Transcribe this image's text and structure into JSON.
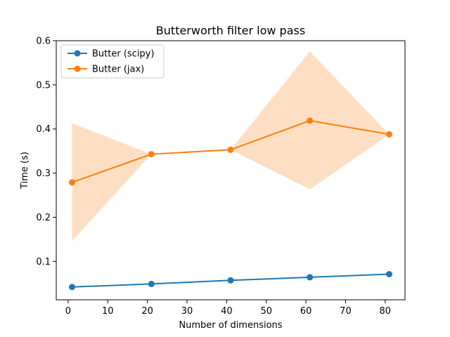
{
  "chart_data": {
    "type": "line",
    "title": "Butterworth filter low pass",
    "xlabel": "Number of dimensions",
    "ylabel": "Time (s)",
    "x": [
      1,
      21,
      41,
      61,
      81
    ],
    "xlim": [
      -3,
      85
    ],
    "ylim": [
      0.013,
      0.6
    ],
    "xticks": [
      0,
      10,
      20,
      30,
      40,
      50,
      60,
      70,
      80
    ],
    "xtick_labels": [
      "0",
      "10",
      "20",
      "30",
      "40",
      "50",
      "60",
      "70",
      "80"
    ],
    "yticks": [
      0.1,
      0.2,
      0.3,
      0.4,
      0.5,
      0.6
    ],
    "ytick_labels": [
      "0.1",
      "0.2",
      "0.3",
      "0.4",
      "0.5",
      "0.6"
    ],
    "grid": false,
    "legend_position": "upper-left",
    "series": [
      {
        "name": "Butter (scipy)",
        "color": "#1f77b4",
        "values": [
          0.042,
          0.049,
          0.057,
          0.064,
          0.071
        ]
      },
      {
        "name": "Butter (jax)",
        "color": "#ff7f0e",
        "band_color": "#ffdfc4",
        "values": [
          0.279,
          0.343,
          0.353,
          0.419,
          0.388
        ],
        "band_upper": [
          0.413,
          0.343,
          0.353,
          0.576,
          0.388
        ],
        "band_lower": [
          0.146,
          0.343,
          0.353,
          0.263,
          0.388
        ]
      }
    ]
  }
}
